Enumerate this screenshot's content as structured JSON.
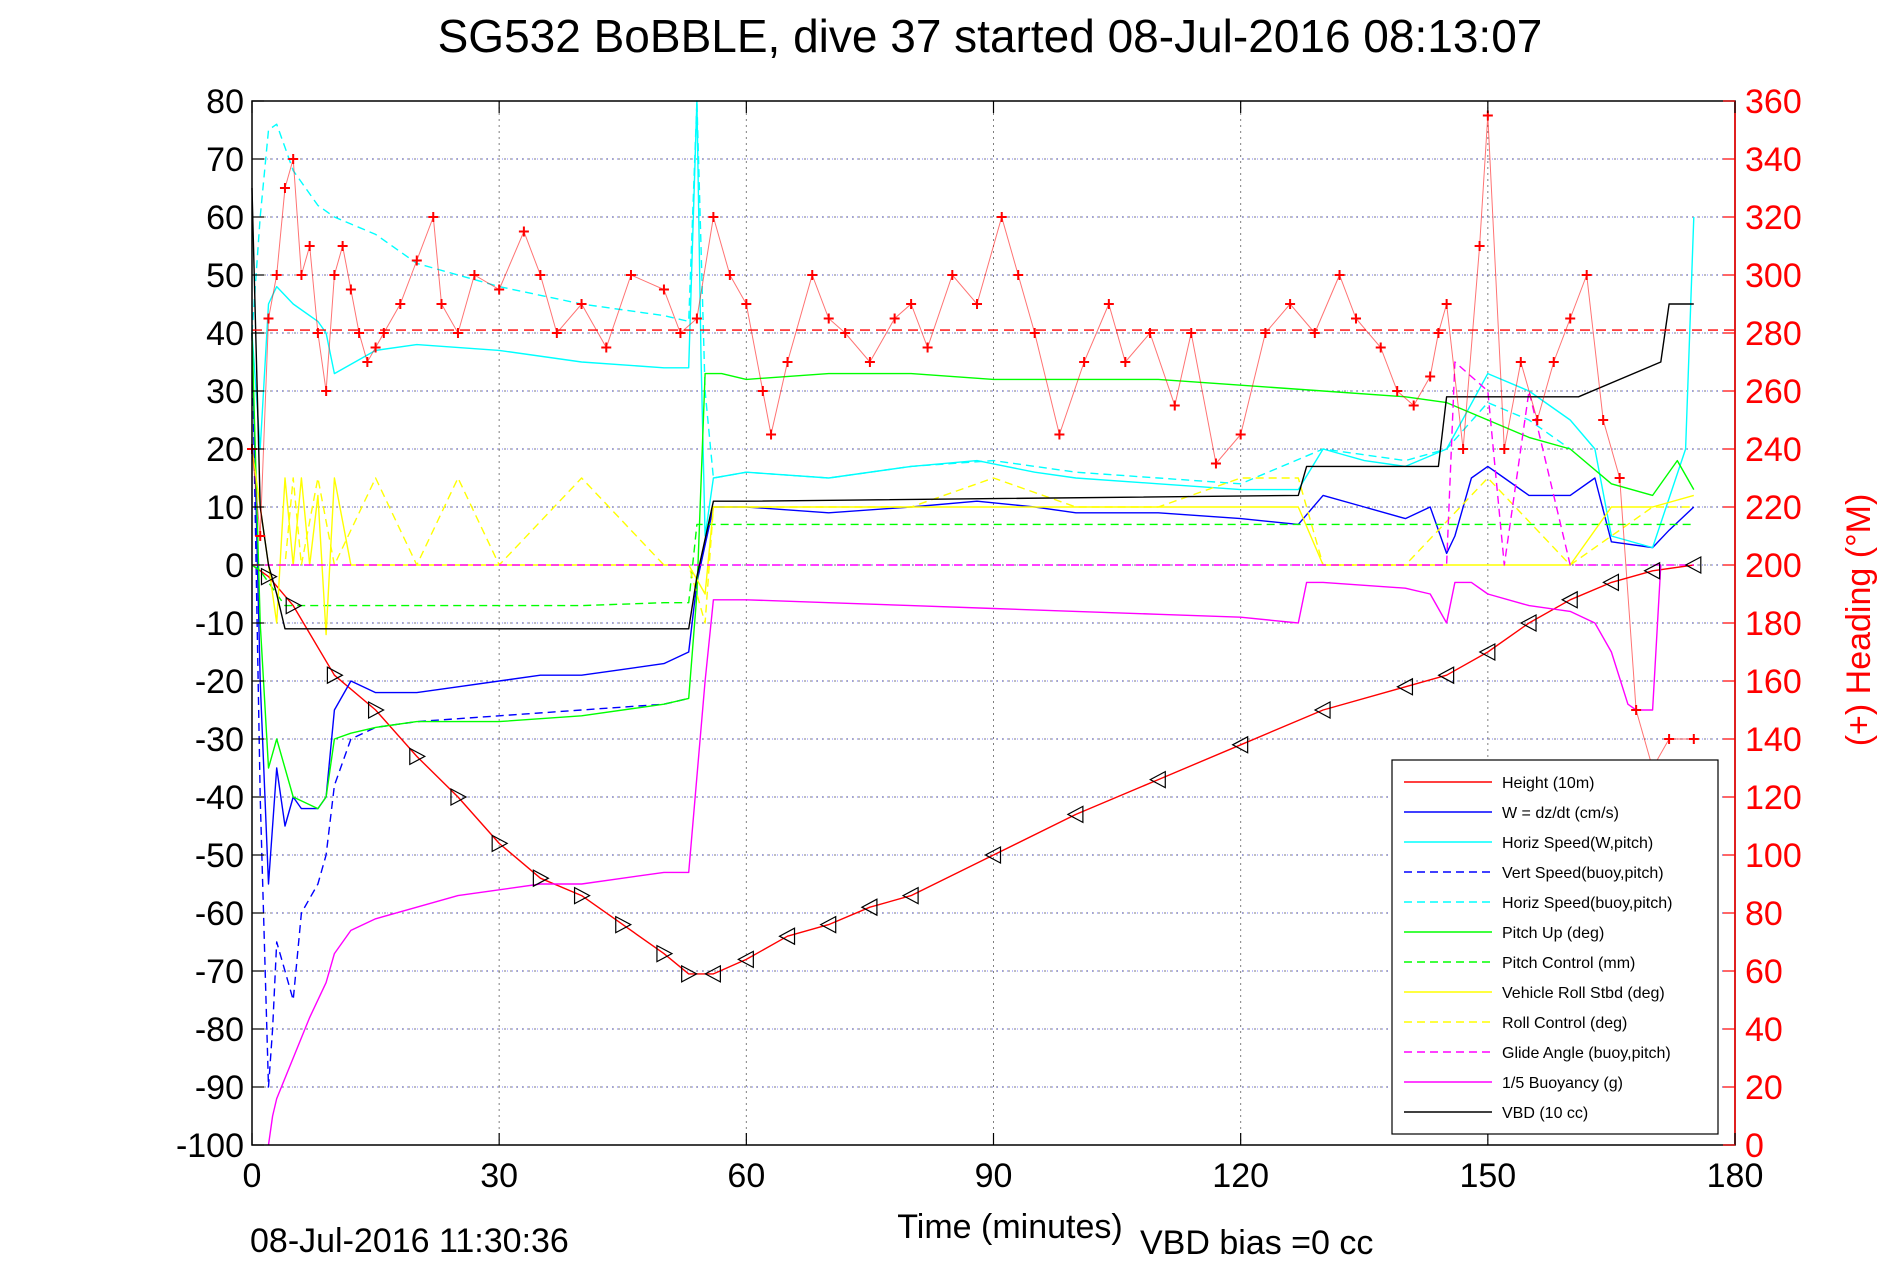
{
  "title": "SG532 BoBBLE, dive 37 started 08-Jul-2016 08:13:07",
  "footer": {
    "timestamp": "08-Jul-2016 11:30:36",
    "vbd_bias": "VBD bias =0 cc"
  },
  "chart_data": {
    "type": "line",
    "title": "SG532 BoBBLE, dive 37 started 08-Jul-2016 08:13:07",
    "xlabel": "Time (minutes)",
    "ylabel": "",
    "ylabel_right": "(+) Heading (°M)",
    "xlim": [
      0,
      180
    ],
    "ylim": [
      -100,
      80
    ],
    "ylim_right": [
      0,
      360
    ],
    "x_ticks": [
      "0",
      "30",
      "60",
      "90",
      "120",
      "150",
      "180"
    ],
    "y_ticks": [
      "80",
      "70",
      "60",
      "50",
      "40",
      "30",
      "20",
      "10",
      "0",
      "-10",
      "-20",
      "-30",
      "-40",
      "-50",
      "-60",
      "-70",
      "-80",
      "-90",
      "-100"
    ],
    "y_ticks_right": [
      "360",
      "340",
      "320",
      "300",
      "280",
      "260",
      "240",
      "220",
      "200",
      "180",
      "160",
      "140",
      "120",
      "100",
      "80",
      "60",
      "40",
      "20",
      "0"
    ],
    "grid": true,
    "legend_position": "bottom-right",
    "colors": {
      "red": "#ff0000",
      "blue": "#0000ff",
      "cyan": "#00ffff",
      "green": "#00ff00",
      "yellow": "#ffff00",
      "magenta": "#ff00ff",
      "black": "#000000"
    },
    "series": [
      {
        "name": "Height (10m)",
        "color": "#ff0000",
        "style": "solid",
        "x": [
          0,
          2,
          5,
          10,
          15,
          20,
          25,
          30,
          35,
          40,
          45,
          50,
          53,
          56,
          60,
          65,
          70,
          75,
          80,
          90,
          100,
          110,
          120,
          130,
          140,
          145,
          150,
          155,
          160,
          165,
          170,
          175
        ],
        "y": [
          0,
          -2,
          -7,
          -19,
          -25,
          -33,
          -40,
          -48,
          -54,
          -57,
          -62,
          -67,
          -70.5,
          -70.5,
          -68,
          -64,
          -62,
          -59,
          -57,
          -50,
          -43,
          -37,
          -31,
          -25,
          -21,
          -19,
          -15,
          -10,
          -6,
          -3,
          -1,
          0
        ]
      },
      {
        "name": "W = dz/dt (cm/s)",
        "color": "#0000ff",
        "style": "solid",
        "x": [
          0,
          1,
          2,
          3,
          4,
          5,
          6,
          8,
          9,
          10,
          12,
          15,
          20,
          25,
          30,
          35,
          40,
          45,
          50,
          53,
          54,
          56,
          60,
          70,
          80,
          88,
          95,
          100,
          110,
          120,
          127,
          130,
          135,
          140,
          143,
          145,
          146,
          148,
          150,
          152,
          155,
          160,
          163,
          165,
          170,
          172,
          175
        ],
        "y": [
          40,
          -20,
          -55,
          -35,
          -45,
          -40,
          -42,
          -42,
          -40,
          -25,
          -20,
          -22,
          -22,
          -21,
          -20,
          -19,
          -19,
          -18,
          -17,
          -15,
          -3,
          10,
          10,
          9,
          10,
          11,
          10,
          9,
          9,
          8,
          7,
          12,
          10,
          8,
          10,
          2,
          5,
          15,
          17,
          15,
          12,
          12,
          15,
          4,
          3,
          6,
          10
        ]
      },
      {
        "name": "Horiz Speed(W,pitch)",
        "color": "#00ffff",
        "style": "solid",
        "x": [
          0,
          1,
          2,
          3,
          5,
          8,
          9,
          10,
          15,
          20,
          30,
          40,
          50,
          53,
          54,
          54.5,
          55,
          56,
          60,
          70,
          80,
          88,
          95,
          100,
          110,
          120,
          127,
          130,
          135,
          140,
          145,
          150,
          155,
          160,
          163,
          165,
          170,
          174,
          175
        ],
        "y": [
          40,
          20,
          45,
          48,
          45,
          42,
          40,
          33,
          37,
          38,
          37,
          35,
          34,
          34,
          80,
          36,
          5,
          15,
          16,
          15,
          17,
          18,
          16,
          15,
          14,
          13,
          13,
          20,
          18,
          17,
          20,
          33,
          30,
          25,
          20,
          5,
          3,
          20,
          60
        ]
      },
      {
        "name": "Vert Speed(buoy,pitch)",
        "color": "#0000ff",
        "style": "dashed",
        "x": [
          0,
          1,
          2,
          2.5,
          3,
          4,
          5,
          6,
          8,
          9,
          10,
          12,
          15,
          20,
          30,
          40,
          50,
          53
        ],
        "y": [
          40,
          -40,
          -90,
          -80,
          -65,
          -70,
          -75,
          -60,
          -55,
          -50,
          -38,
          -30,
          -28,
          -27,
          -26,
          -25,
          -24,
          -23
        ]
      },
      {
        "name": "Horiz Speed(buoy,pitch)",
        "color": "#00ffff",
        "style": "dashed",
        "x": [
          0,
          1,
          2,
          3,
          4,
          5,
          8,
          10,
          15,
          20,
          30,
          40,
          45,
          50,
          53,
          54,
          55,
          56,
          60,
          70,
          80,
          90,
          100,
          110,
          120,
          130,
          140,
          145,
          150,
          155,
          160
        ],
        "y": [
          40,
          60,
          75,
          76,
          72,
          68,
          62,
          60,
          57,
          52,
          48,
          45,
          44,
          43,
          42,
          80,
          30,
          15,
          16,
          15,
          17,
          18,
          16,
          15,
          14,
          20,
          18,
          20,
          28,
          25,
          20
        ]
      },
      {
        "name": "Pitch Up (deg)",
        "color": "#00ff00",
        "style": "solid",
        "x": [
          0,
          1,
          2,
          3,
          5,
          8,
          9,
          10,
          12,
          15,
          20,
          30,
          40,
          50,
          53,
          54,
          55,
          57,
          60,
          70,
          80,
          90,
          100,
          110,
          120,
          130,
          140,
          145,
          150,
          155,
          160,
          165,
          170,
          173,
          175
        ],
        "y": [
          40,
          -10,
          -35,
          -30,
          -40,
          -42,
          -40,
          -30,
          -29,
          -28,
          -27,
          -27,
          -26,
          -24,
          -23,
          -5,
          33,
          33,
          32,
          33,
          33,
          32,
          32,
          32,
          31,
          30,
          29,
          28,
          25,
          22,
          20,
          14,
          12,
          18,
          13
        ]
      },
      {
        "name": "Pitch Control (mm)",
        "color": "#00ff00",
        "style": "dashed",
        "x": [
          0,
          1,
          2,
          3,
          4,
          10,
          20,
          30,
          40,
          50,
          53,
          54,
          55,
          60,
          80,
          100,
          120,
          140,
          145,
          150,
          160,
          170,
          175
        ],
        "y": [
          0,
          -1,
          -3,
          -5,
          -7,
          -7,
          -7,
          -7,
          -7,
          -6.5,
          -6.5,
          7,
          7,
          7,
          7,
          7,
          7,
          7,
          7,
          7,
          7,
          7,
          7
        ]
      },
      {
        "name": "Vehicle Roll Stbd (deg)",
        "color": "#ffff00",
        "style": "solid",
        "x": [
          0,
          2,
          3,
          4,
          5,
          6,
          7,
          8,
          9,
          10,
          12,
          15,
          20,
          25,
          30,
          40,
          50,
          53,
          55,
          56,
          60,
          65,
          70,
          80,
          90,
          100,
          110,
          120,
          127,
          130,
          140,
          145,
          150,
          155,
          160,
          165,
          170,
          175
        ],
        "y": [
          20,
          0,
          -10,
          15,
          0,
          15,
          0,
          12,
          -12,
          15,
          0,
          0,
          0,
          0,
          0,
          0,
          0,
          0,
          -5,
          10,
          10,
          10,
          10,
          10,
          10,
          10,
          10,
          10,
          10,
          0,
          0,
          0,
          0,
          0,
          0,
          10,
          10,
          12
        ]
      },
      {
        "name": "Roll Control (deg)",
        "color": "#ffff00",
        "style": "dashed",
        "x": [
          0,
          2,
          4,
          5,
          6,
          8,
          10,
          15,
          20,
          25,
          30,
          40,
          50,
          53,
          55,
          56,
          60,
          70,
          80,
          90,
          100,
          110,
          120,
          127,
          130,
          140,
          150,
          160,
          170,
          175
        ],
        "y": [
          0,
          0,
          0,
          15,
          0,
          15,
          0,
          15,
          0,
          15,
          0,
          15,
          0,
          0,
          -10,
          10,
          10,
          10,
          10,
          15,
          10,
          10,
          15,
          15,
          0,
          0,
          15,
          0,
          10,
          10
        ]
      },
      {
        "name": "Glide Angle (buoy,pitch)",
        "color": "#ff00ff",
        "style": "dashed",
        "x": [
          0,
          53,
          54,
          56,
          60,
          80,
          100,
          120,
          140,
          145,
          146,
          150,
          152,
          155,
          160,
          165,
          170,
          175
        ],
        "y": [
          0,
          0,
          0,
          0,
          0,
          0,
          0,
          0,
          0,
          0,
          35,
          30,
          0,
          30,
          0,
          0,
          0,
          0
        ]
      },
      {
        "name": "1/5 Buoyancy (g)",
        "color": "#ff00ff",
        "style": "solid",
        "x": [
          2,
          2.5,
          3,
          5,
          7,
          9,
          10,
          12,
          15,
          20,
          25,
          30,
          35,
          40,
          45,
          50,
          53,
          55,
          56,
          60,
          70,
          80,
          90,
          100,
          110,
          120,
          127,
          128,
          130,
          140,
          143,
          145,
          146,
          148,
          150,
          155,
          160,
          163,
          165,
          167,
          168,
          170,
          171
        ],
        "y": [
          -100,
          -95,
          -92,
          -85,
          -78,
          -72,
          -67,
          -63,
          -61,
          -59,
          -57,
          -56,
          -55,
          -55,
          -54,
          -53,
          -53,
          -20,
          -6,
          -6,
          -6.5,
          -7,
          -7.5,
          -8,
          -8.5,
          -9,
          -10,
          -3,
          -3,
          -4,
          -5,
          -10,
          -3,
          -3,
          -5,
          -7,
          -8,
          -10,
          -15,
          -24,
          -25,
          -25,
          0
        ]
      },
      {
        "name": "VBD (10 cc)",
        "color": "#000000",
        "style": "solid",
        "x": [
          0,
          1,
          2,
          3,
          4,
          50,
          53,
          54,
          56,
          60,
          127,
          128,
          144,
          145,
          160,
          161,
          171,
          172,
          175
        ],
        "y": [
          65,
          10,
          0,
          -5,
          -11,
          -11,
          -11,
          -2,
          11,
          11,
          12,
          17,
          17,
          29,
          29,
          29,
          35,
          45,
          45
        ]
      }
    ],
    "heading_series": {
      "name": "(+) Heading (°M)",
      "axis": "right",
      "color": "#ff0000",
      "marker": "+",
      "reference_line": 281,
      "x": [
        0,
        1,
        2,
        3,
        4,
        5,
        6,
        7,
        8,
        9,
        10,
        11,
        12,
        13,
        14,
        15,
        16,
        18,
        20,
        22,
        23,
        25,
        27,
        30,
        33,
        35,
        37,
        40,
        43,
        46,
        50,
        52,
        54,
        56,
        58,
        60,
        62,
        63,
        65,
        68,
        70,
        72,
        75,
        78,
        80,
        82,
        85,
        88,
        91,
        93,
        95,
        98,
        101,
        104,
        106,
        109,
        112,
        114,
        117,
        120,
        123,
        126,
        129,
        132,
        134,
        137,
        139,
        141,
        143,
        144,
        145,
        147,
        149,
        150,
        152,
        154,
        156,
        158,
        160,
        162,
        164,
        166,
        168,
        170,
        172,
        175
      ],
      "y": [
        240,
        210,
        285,
        300,
        330,
        340,
        300,
        310,
        280,
        260,
        300,
        310,
        295,
        280,
        270,
        275,
        280,
        290,
        305,
        320,
        290,
        280,
        300,
        295,
        315,
        300,
        280,
        290,
        275,
        300,
        295,
        280,
        285,
        320,
        300,
        290,
        260,
        245,
        270,
        300,
        285,
        280,
        270,
        285,
        290,
        275,
        300,
        290,
        320,
        300,
        280,
        245,
        270,
        290,
        270,
        280,
        255,
        280,
        235,
        245,
        280,
        290,
        280,
        300,
        285,
        275,
        260,
        255,
        265,
        280,
        290,
        240,
        310,
        355,
        240,
        270,
        250,
        270,
        285,
        300,
        250,
        230,
        150,
        130,
        140,
        140
      ]
    }
  }
}
